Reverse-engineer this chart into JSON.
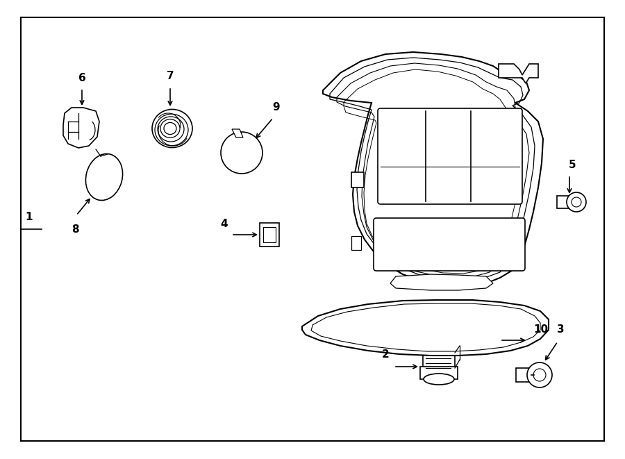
{
  "bg_color": "#ffffff",
  "border_color": "#000000",
  "line_color": "#000000",
  "fig_width": 9.0,
  "fig_height": 6.61
}
